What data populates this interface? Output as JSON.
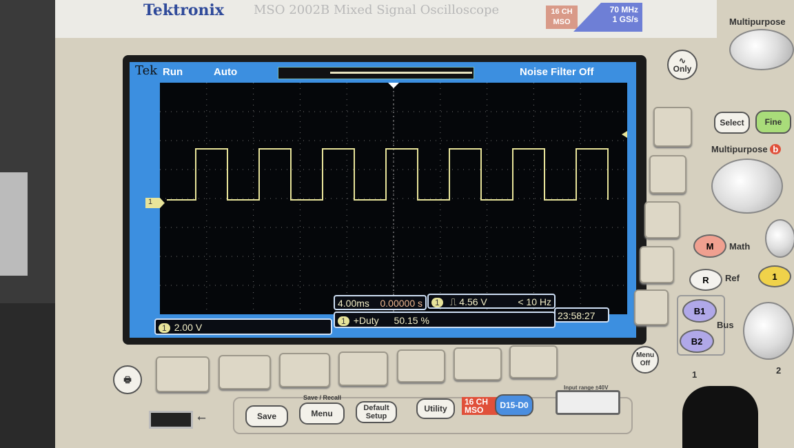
{
  "device": {
    "brand": "Tektronix",
    "model": "MSO 2002B Mixed Signal Oscilloscope",
    "badge": "16 CH MSO",
    "bandwidth": "70 MHz",
    "sample_rate": "1 GS/s"
  },
  "status": {
    "logo": "Tek",
    "run_state": "Run",
    "trigger_mode": "Auto",
    "noise_filter": "Noise Filter Off"
  },
  "channel1": {
    "marker": "1",
    "scale": "2.00 V",
    "color": "#e8e49a"
  },
  "timebase": {
    "scale": "4.00ms",
    "position": "0.00000 s"
  },
  "trigger": {
    "source": "1",
    "slope": "rising-edge-icon",
    "level": "4.56 V",
    "frequency": "< 10 Hz"
  },
  "measurement": {
    "source": "1",
    "name": "+Duty",
    "value": "50.15 %"
  },
  "clock": "23:58:27",
  "panel": {
    "multipurpose_a": "Multipurpose",
    "multipurpose_b": "Multipurpose",
    "b_mark": "b",
    "select": "Select",
    "fine": "Fine",
    "scope_only": "Only",
    "math": "M",
    "math_label": "Math",
    "ref": "R",
    "ref_label": "Ref",
    "ch1": "1",
    "b1": "B1",
    "b2": "B2",
    "bus_label": "Bus",
    "menu_off": "Menu Off",
    "save_recall_label": "Save / Recall",
    "save": "Save",
    "menu": "Menu",
    "default_setup": "Default Setup",
    "utility": "Utility",
    "mso_label": "16 CH MSO",
    "digital": "D15-D0",
    "input_range": "Input range ±40V",
    "ch_in_1": "1",
    "ch_in_2": "2"
  }
}
